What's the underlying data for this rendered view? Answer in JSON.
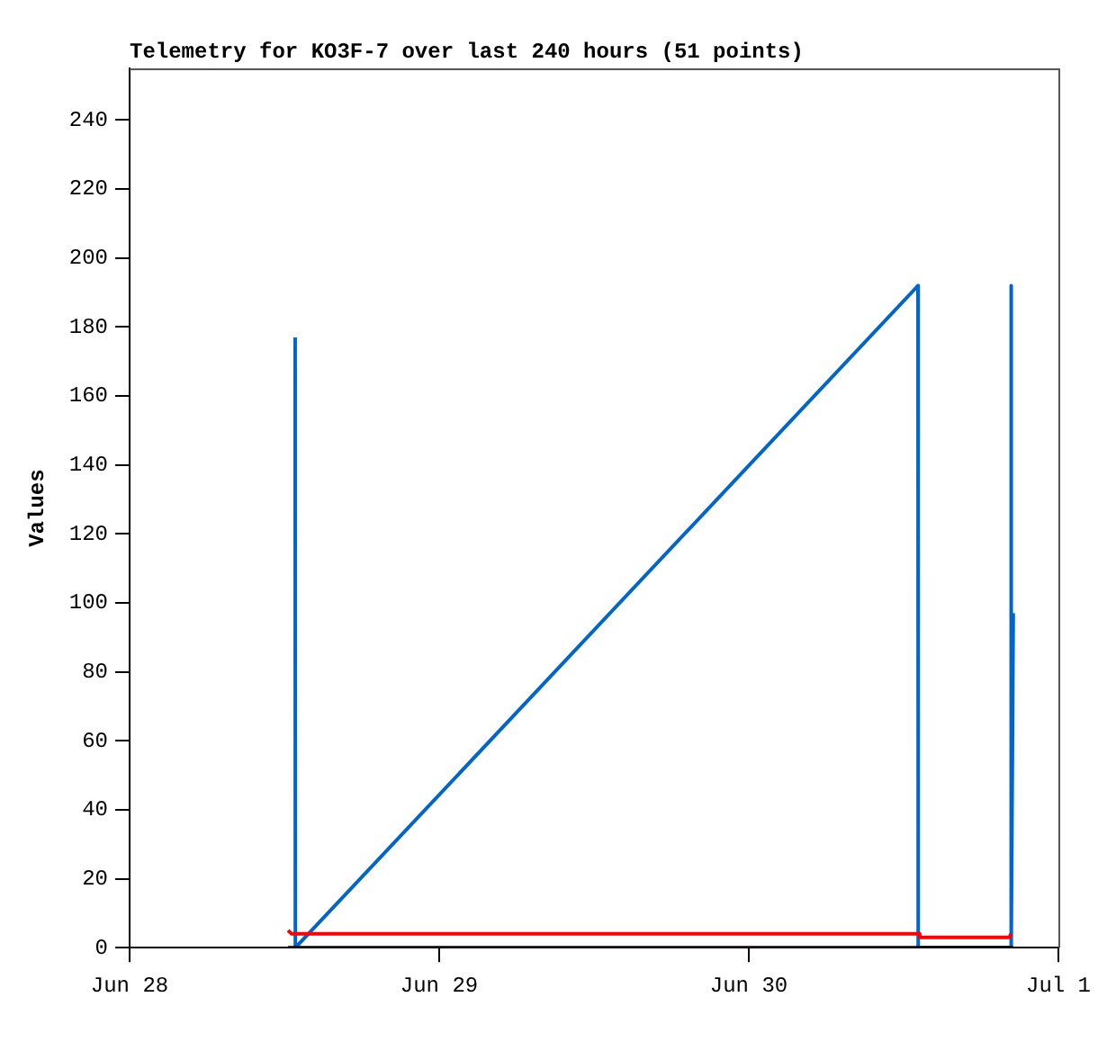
{
  "chart_data": {
    "type": "line",
    "title": "Telemetry for KO3F-7 over last 240 hours (51 points)",
    "ylabel": "Values",
    "xlim": [
      "--06-28",
      "--07-01"
    ],
    "xticks": [
      {
        "value": "--06-28",
        "label": "Jun 28"
      },
      {
        "value": "--06-29",
        "label": "Jun 29"
      },
      {
        "value": "--06-30",
        "label": "Jun 30"
      },
      {
        "value": "--07-01",
        "label": "Jul 1"
      }
    ],
    "ylim": [
      0,
      255
    ],
    "yticks": [
      0,
      20,
      40,
      60,
      80,
      100,
      120,
      140,
      160,
      180,
      200,
      220,
      240
    ],
    "grid": false,
    "legend": false,
    "marker": "none",
    "line_style": "solid",
    "series": [
      {
        "color": "#000000",
        "x": [
          "--06-28T12:17",
          "--06-30T20:30"
        ],
        "values": [
          0,
          0
        ]
      },
      {
        "color": "#ff0000",
        "x": [
          "--06-28T12:17",
          "--06-28T12:34",
          "--06-30T13:08",
          "--06-30T13:15",
          "--06-30T20:12",
          "--06-30T20:20"
        ],
        "values": [
          5,
          4,
          4,
          3,
          3,
          4
        ]
      },
      {
        "color": "#0066cc",
        "x": [
          "--06-28T12:50",
          "--06-28T12:51",
          "--06-30T13:07",
          "--06-30T13:08",
          "--06-30T20:19",
          "--06-30T20:20",
          "--06-30T20:21",
          "--06-30T20:30"
        ],
        "values": [
          177,
          0,
          192,
          0,
          0,
          192,
          0,
          97
        ]
      }
    ]
  }
}
